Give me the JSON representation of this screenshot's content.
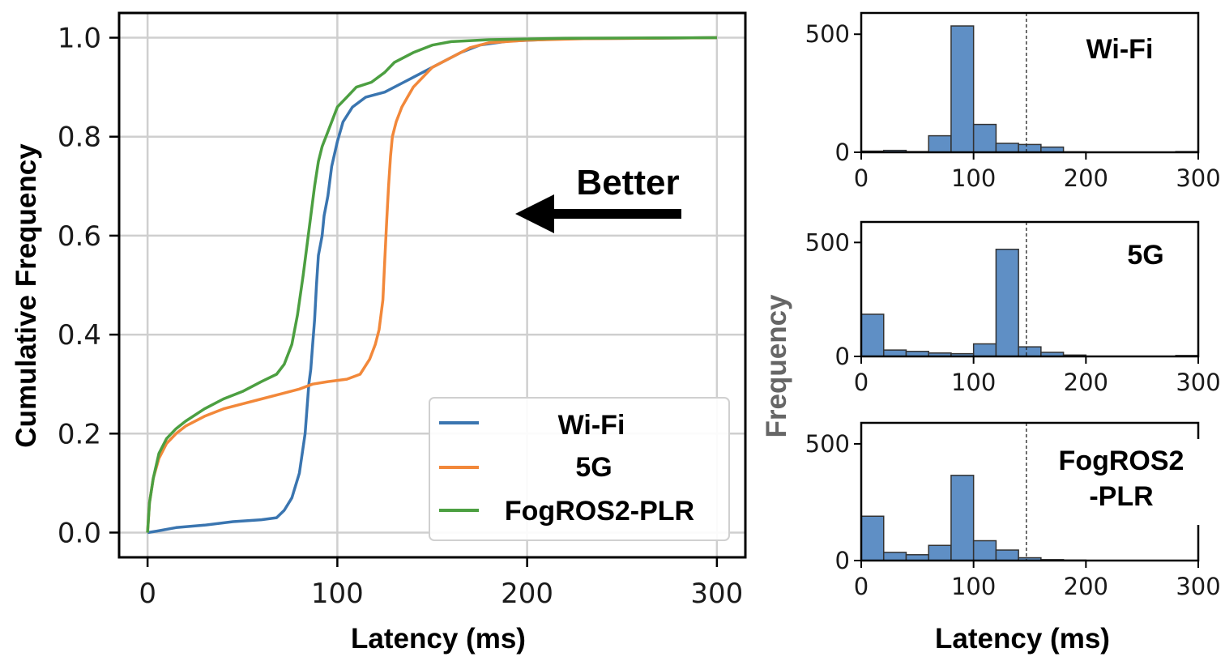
{
  "chart_data": [
    {
      "type": "line",
      "subtype": "cdf",
      "title": "",
      "xlabel": "Latency (ms)",
      "ylabel": "Cumulative Frequency",
      "xlim": [
        -15,
        315
      ],
      "ylim": [
        -0.05,
        1.05
      ],
      "xticks": [
        0,
        100,
        200,
        300
      ],
      "yticks": [
        0.0,
        0.2,
        0.4,
        0.6,
        0.8,
        1.0
      ],
      "xtick_labels": [
        "0",
        "100",
        "200",
        "300"
      ],
      "ytick_labels": [
        "0.0",
        "0.2",
        "0.4",
        "0.6",
        "0.8",
        "1.0"
      ],
      "grid": true,
      "legend_position": "bottom-right",
      "annotation": {
        "text": "Better",
        "arrow_direction": "left"
      },
      "series": [
        {
          "name": "Wi-Fi",
          "color": "#3a75b0",
          "points": [
            [
              0,
              0
            ],
            [
              5,
              0.003
            ],
            [
              15,
              0.01
            ],
            [
              30,
              0.015
            ],
            [
              45,
              0.022
            ],
            [
              60,
              0.026
            ],
            [
              68,
              0.03
            ],
            [
              72,
              0.045
            ],
            [
              76,
              0.07
            ],
            [
              80,
              0.12
            ],
            [
              83,
              0.2
            ],
            [
              85,
              0.3
            ],
            [
              86,
              0.33
            ],
            [
              87,
              0.38
            ],
            [
              88,
              0.43
            ],
            [
              89,
              0.5
            ],
            [
              90,
              0.56
            ],
            [
              92,
              0.6
            ],
            [
              93,
              0.64
            ],
            [
              95,
              0.68
            ],
            [
              97,
              0.74
            ],
            [
              100,
              0.79
            ],
            [
              103,
              0.83
            ],
            [
              108,
              0.86
            ],
            [
              115,
              0.88
            ],
            [
              125,
              0.89
            ],
            [
              135,
              0.91
            ],
            [
              145,
              0.93
            ],
            [
              155,
              0.95
            ],
            [
              165,
              0.97
            ],
            [
              175,
              0.985
            ],
            [
              190,
              0.993
            ],
            [
              220,
              0.998
            ],
            [
              260,
              0.999
            ],
            [
              300,
              1.0
            ]
          ]
        },
        {
          "name": "5G",
          "color": "#f2883a",
          "points": [
            [
              0,
              0
            ],
            [
              1,
              0.06
            ],
            [
              3,
              0.11
            ],
            [
              6,
              0.15
            ],
            [
              10,
              0.18
            ],
            [
              15,
              0.2
            ],
            [
              20,
              0.215
            ],
            [
              30,
              0.235
            ],
            [
              40,
              0.25
            ],
            [
              50,
              0.26
            ],
            [
              60,
              0.27
            ],
            [
              70,
              0.28
            ],
            [
              80,
              0.29
            ],
            [
              87,
              0.3
            ],
            [
              95,
              0.305
            ],
            [
              105,
              0.31
            ],
            [
              112,
              0.32
            ],
            [
              117,
              0.35
            ],
            [
              120,
              0.38
            ],
            [
              122,
              0.41
            ],
            [
              124,
              0.47
            ],
            [
              125,
              0.55
            ],
            [
              126,
              0.63
            ],
            [
              127,
              0.7
            ],
            [
              128,
              0.76
            ],
            [
              129,
              0.8
            ],
            [
              131,
              0.83
            ],
            [
              134,
              0.86
            ],
            [
              137,
              0.88
            ],
            [
              140,
              0.9
            ],
            [
              145,
              0.92
            ],
            [
              150,
              0.94
            ],
            [
              160,
              0.96
            ],
            [
              170,
              0.98
            ],
            [
              180,
              0.99
            ],
            [
              200,
              0.995
            ],
            [
              230,
              0.998
            ],
            [
              300,
              1.0
            ]
          ]
        },
        {
          "name": "FogROS2-PLR",
          "color": "#4c9f41",
          "points": [
            [
              0,
              0
            ],
            [
              1,
              0.06
            ],
            [
              3,
              0.11
            ],
            [
              6,
              0.16
            ],
            [
              10,
              0.19
            ],
            [
              15,
              0.21
            ],
            [
              20,
              0.225
            ],
            [
              30,
              0.25
            ],
            [
              40,
              0.27
            ],
            [
              50,
              0.285
            ],
            [
              60,
              0.305
            ],
            [
              68,
              0.32
            ],
            [
              72,
              0.34
            ],
            [
              76,
              0.38
            ],
            [
              79,
              0.44
            ],
            [
              82,
              0.52
            ],
            [
              84,
              0.58
            ],
            [
              86,
              0.64
            ],
            [
              88,
              0.7
            ],
            [
              90,
              0.75
            ],
            [
              92,
              0.78
            ],
            [
              95,
              0.81
            ],
            [
              100,
              0.86
            ],
            [
              105,
              0.88
            ],
            [
              110,
              0.9
            ],
            [
              118,
              0.91
            ],
            [
              125,
              0.93
            ],
            [
              130,
              0.95
            ],
            [
              140,
              0.97
            ],
            [
              150,
              0.985
            ],
            [
              160,
              0.992
            ],
            [
              180,
              0.996
            ],
            [
              220,
              0.999
            ],
            [
              300,
              1.0
            ]
          ]
        }
      ]
    },
    {
      "type": "bar",
      "subtype": "histogram",
      "panel_label": "Wi-Fi",
      "xlabel": "Latency (ms)",
      "ylabel": "Frequency",
      "xlim": [
        0,
        300
      ],
      "ylim": [
        0,
        590
      ],
      "xticks": [
        0,
        100,
        200,
        300
      ],
      "yticks": [
        0,
        500
      ],
      "xtick_labels": [
        "0",
        "100",
        "200",
        "300"
      ],
      "ytick_labels": [
        "0",
        "500"
      ],
      "bin_width": 20,
      "bin_edges_start": 0,
      "values": [
        5,
        8,
        3,
        70,
        535,
        118,
        38,
        33,
        22,
        2,
        0,
        0,
        0,
        0,
        3
      ],
      "reference_line_x": 147,
      "bar_color": "#5f8fc5"
    },
    {
      "type": "bar",
      "subtype": "histogram",
      "panel_label": "5G",
      "xlabel": "Latency (ms)",
      "ylabel": "Frequency",
      "xlim": [
        0,
        300
      ],
      "ylim": [
        0,
        590
      ],
      "xticks": [
        0,
        100,
        200,
        300
      ],
      "yticks": [
        0,
        500
      ],
      "xtick_labels": [
        "0",
        "100",
        "200",
        "300"
      ],
      "ytick_labels": [
        "0",
        "500"
      ],
      "bin_width": 20,
      "bin_edges_start": 0,
      "values": [
        185,
        28,
        22,
        15,
        12,
        55,
        470,
        42,
        18,
        6,
        0,
        0,
        0,
        0,
        4
      ],
      "reference_line_x": 147,
      "bar_color": "#5f8fc5"
    },
    {
      "type": "bar",
      "subtype": "histogram",
      "panel_label": "FogROS2\n-PLR",
      "panel_label_lines": [
        "FogROS2",
        "-PLR"
      ],
      "xlabel": "Latency (ms)",
      "ylabel": "Frequency",
      "xlim": [
        0,
        300
      ],
      "ylim": [
        0,
        590
      ],
      "xticks": [
        0,
        100,
        200,
        300
      ],
      "yticks": [
        0,
        500
      ],
      "xtick_labels": [
        "0",
        "100",
        "200",
        "300"
      ],
      "ytick_labels": [
        "0",
        "500"
      ],
      "bin_width": 20,
      "bin_edges_start": 0,
      "values": [
        190,
        35,
        25,
        65,
        365,
        85,
        45,
        12,
        4,
        2,
        0,
        0,
        0,
        0,
        0
      ],
      "reference_line_x": 147,
      "bar_color": "#5f8fc5"
    }
  ],
  "shared_labels": {
    "hist_ylabel": "Frequency",
    "hist_xlabel": "Latency (ms)"
  },
  "colors": {
    "grid": "#cfcfcf",
    "axes": "#000000",
    "hist_bar": "#5f8fc5",
    "hist_ylabel": "#666666"
  }
}
